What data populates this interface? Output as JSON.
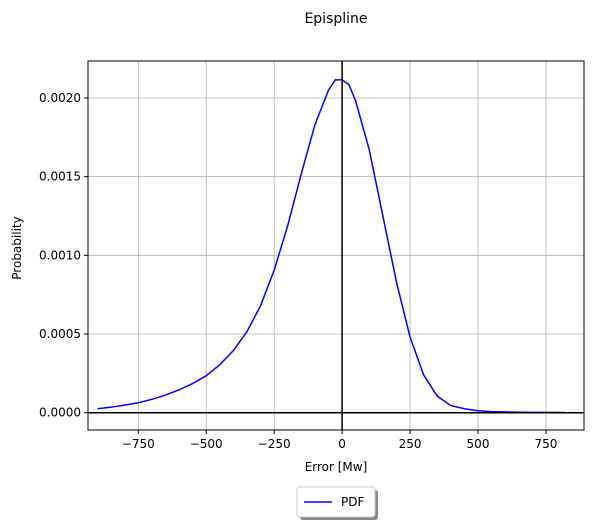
{
  "chart_data": {
    "type": "line",
    "title": "Epispline",
    "xlabel": "Error [Mw]",
    "ylabel": "Probability",
    "xlim": [
      -935,
      890
    ],
    "ylim": [
      -0.00011,
      0.002235
    ],
    "xticks": [
      -750,
      -500,
      -250,
      0,
      250,
      500,
      750
    ],
    "xtick_labels": [
      "−750",
      "−500",
      "−250",
      "0",
      "250",
      "500",
      "750"
    ],
    "yticks": [
      0.0,
      0.0005,
      0.001,
      0.0015,
      0.002
    ],
    "ytick_labels": [
      "0.0000",
      "0.0005",
      "0.0010",
      "0.0015",
      "0.0020"
    ],
    "grid": true,
    "reference_lines": {
      "x": 0,
      "y": 0
    },
    "legend": {
      "placement": "bottom-center",
      "entries": [
        "PDF"
      ]
    },
    "colors": {
      "series": "#0000ff",
      "grid": "#b0b0b0",
      "axes": "#000000"
    },
    "series": [
      {
        "name": "PDF",
        "x": [
          -900,
          -850,
          -800,
          -750,
          -700,
          -650,
          -600,
          -550,
          -500,
          -450,
          -400,
          -350,
          -300,
          -250,
          -200,
          -150,
          -100,
          -50,
          -25,
          0,
          25,
          50,
          100,
          150,
          200,
          250,
          300,
          350,
          400,
          450,
          500,
          550,
          600,
          650,
          700,
          750,
          800,
          820
        ],
        "y": [
          2.5e-05,
          3.5e-05,
          4.8e-05,
          6.3e-05,
          8.5e-05,
          0.000112,
          0.000145,
          0.000185,
          0.000235,
          0.000305,
          0.000395,
          0.000515,
          0.00068,
          0.000905,
          0.00119,
          0.00152,
          0.00183,
          0.00205,
          0.002115,
          0.002115,
          0.002085,
          0.00198,
          0.00167,
          0.00125,
          0.00083,
          0.00048,
          0.00024,
          0.000105,
          4.5e-05,
          2.5e-05,
          1.2e-05,
          7e-06,
          5e-06,
          3e-06,
          2e-06,
          2e-06,
          1e-06,
          1e-06
        ]
      }
    ]
  }
}
